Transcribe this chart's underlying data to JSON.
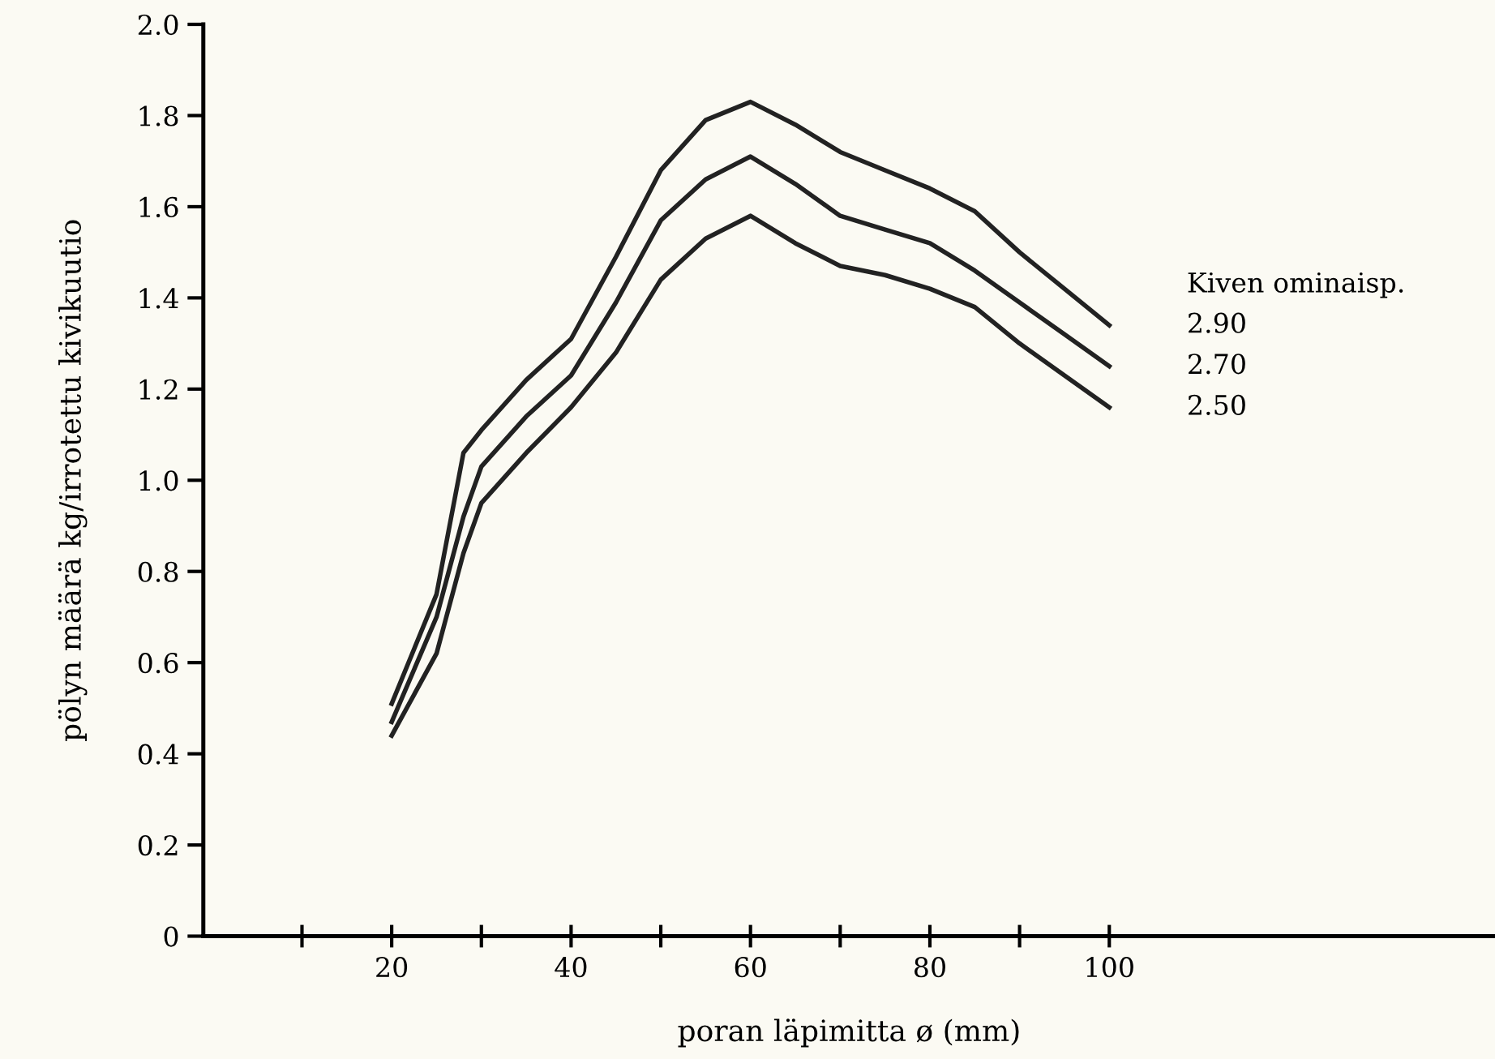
{
  "chart_data": {
    "type": "line",
    "xlabel": "poran läpimitta ø (mm)",
    "ylabel": "pölyn määrä kg/irrotettu kivikuutio",
    "legend_title": "Kiven ominaisp.",
    "legend": "right",
    "grid": false,
    "marker": "none",
    "line_style": "solid",
    "x": [
      20,
      25,
      28,
      30,
      35,
      40,
      45,
      50,
      55,
      60,
      65,
      70,
      75,
      80,
      85,
      90,
      95,
      100
    ],
    "series": [
      {
        "name": "2.90",
        "color": "#222222",
        "values": [
          0.51,
          0.75,
          1.06,
          1.11,
          1.22,
          1.31,
          1.49,
          1.68,
          1.79,
          1.83,
          1.78,
          1.72,
          1.68,
          1.64,
          1.59,
          1.5,
          1.42,
          1.34
        ]
      },
      {
        "name": "2.70",
        "color": "#222222",
        "values": [
          0.47,
          0.7,
          0.92,
          1.03,
          1.14,
          1.23,
          1.39,
          1.57,
          1.66,
          1.71,
          1.65,
          1.58,
          1.55,
          1.52,
          1.46,
          1.39,
          1.32,
          1.25
        ]
      },
      {
        "name": "2.50",
        "color": "#222222",
        "values": [
          0.44,
          0.62,
          0.84,
          0.95,
          1.06,
          1.16,
          1.28,
          1.44,
          1.53,
          1.58,
          1.52,
          1.47,
          1.45,
          1.42,
          1.38,
          1.3,
          1.23,
          1.16
        ]
      }
    ],
    "xlim": [
      -1,
      143
    ],
    "ylim": [
      0,
      2.0
    ],
    "xticks": [
      {
        "value": 10,
        "label": null
      },
      20,
      {
        "value": 30,
        "label": null
      },
      40,
      {
        "value": 50,
        "label": null
      },
      60,
      {
        "value": 70,
        "label": null
      },
      80,
      {
        "value": 90,
        "label": null
      },
      100
    ],
    "yticks": [
      {
        "value": 0,
        "label": "0"
      },
      {
        "value": 0.2,
        "label": "0.2"
      },
      {
        "value": 0.4,
        "label": "0.4"
      },
      {
        "value": 0.6,
        "label": "0.6"
      },
      {
        "value": 0.8,
        "label": "0.8"
      },
      {
        "value": 1.0,
        "label": "1.0"
      },
      {
        "value": 1.2,
        "label": "1.2"
      },
      {
        "value": 1.4,
        "label": "1.4"
      },
      {
        "value": 1.6,
        "label": "1.6"
      },
      {
        "value": 1.8,
        "label": "1.8"
      },
      {
        "value": 2.0,
        "label": "2.0"
      }
    ]
  }
}
